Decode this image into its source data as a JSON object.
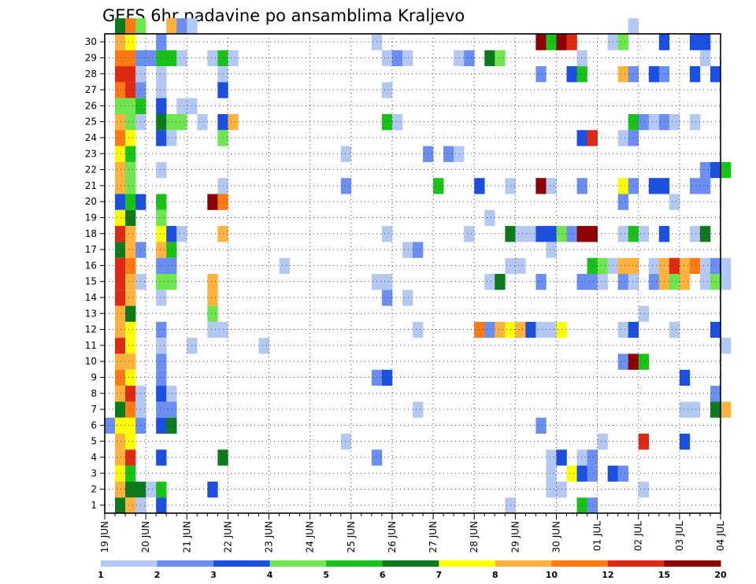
{
  "chart_data": {
    "type": "heatmap",
    "title": "GEFS 6hr padavine po ansamblima Kraljevo",
    "xlabel": "",
    "ylabel": "",
    "x_tick_labels": [
      "19 JUN",
      "20 JUN",
      "21 JUN",
      "22 JUN",
      "23 JUN",
      "24 JUN",
      "25 JUN",
      "26 JUN",
      "27 JUN",
      "28 JUN",
      "29 JUN",
      "30 JUN",
      "01 JUL",
      "02 JUL",
      "03 JUL",
      "04 JUL"
    ],
    "y_tick_labels": [
      "1",
      "2",
      "3",
      "4",
      "5",
      "6",
      "7",
      "8",
      "9",
      "10",
      "11",
      "12",
      "13",
      "14",
      "15",
      "16",
      "17",
      "18",
      "19",
      "20",
      "21",
      "22",
      "23",
      "24",
      "25",
      "26",
      "27",
      "28",
      "29",
      "30"
    ],
    "xlim_steps": [
      0,
      60
    ],
    "ylim_members": [
      0,
      30
    ],
    "grid": true,
    "colorbar": {
      "labels": [
        "1",
        "2",
        "3",
        "4",
        "5",
        "6",
        "7",
        "8",
        "10",
        "12",
        "15",
        "20"
      ],
      "colors": [
        "#b4c8f4",
        "#6b8ff0",
        "#1a4fe0",
        "#6fe64f",
        "#19c219",
        "#0e7a1e",
        "#ffff00",
        "#ffb23d",
        "#ff7a12",
        "#dd2a12",
        "#8e0000"
      ]
    },
    "color_classes": {
      "l": "#b4c8f4",
      "m": "#6b8ff0",
      "b": "#1a4fe0",
      "g": "#6fe64f",
      "G": "#19c219",
      "D": "#0e7a1e",
      "y": "#ffff00",
      "o": "#ffb23d",
      "O": "#ff7a12",
      "r": "#dd2a12",
      "R": "#8e0000"
    },
    "cells": [
      [
        1,
        30,
        "D"
      ],
      [
        2,
        30,
        "O"
      ],
      [
        3,
        30,
        "g"
      ],
      [
        6,
        30,
        "o"
      ],
      [
        7,
        30,
        "m"
      ],
      [
        8,
        30,
        "l"
      ],
      [
        51,
        30,
        "l"
      ],
      [
        1,
        29,
        "o"
      ],
      [
        2,
        29,
        "y"
      ],
      [
        5,
        29,
        "m"
      ],
      [
        26,
        29,
        "l"
      ],
      [
        42,
        29,
        "R"
      ],
      [
        43,
        29,
        "G"
      ],
      [
        44,
        29,
        "R"
      ],
      [
        45,
        29,
        "r"
      ],
      [
        49,
        29,
        "l"
      ],
      [
        50,
        29,
        "g"
      ],
      [
        54,
        29,
        "b"
      ],
      [
        57,
        29,
        "b"
      ],
      [
        58,
        29,
        "b"
      ],
      [
        1,
        28,
        "O"
      ],
      [
        2,
        28,
        "O"
      ],
      [
        3,
        28,
        "m"
      ],
      [
        4,
        28,
        "m"
      ],
      [
        5,
        28,
        "G"
      ],
      [
        6,
        28,
        "G"
      ],
      [
        7,
        28,
        "l"
      ],
      [
        10,
        28,
        "l"
      ],
      [
        11,
        28,
        "G"
      ],
      [
        12,
        28,
        "l"
      ],
      [
        27,
        28,
        "l"
      ],
      [
        28,
        28,
        "m"
      ],
      [
        29,
        28,
        "l"
      ],
      [
        34,
        28,
        "l"
      ],
      [
        35,
        28,
        "m"
      ],
      [
        37,
        28,
        "D"
      ],
      [
        38,
        28,
        "g"
      ],
      [
        46,
        28,
        "l"
      ],
      [
        58,
        28,
        "l"
      ],
      [
        1,
        27,
        "r"
      ],
      [
        2,
        27,
        "r"
      ],
      [
        3,
        27,
        "l"
      ],
      [
        5,
        27,
        "l"
      ],
      [
        11,
        27,
        "l"
      ],
      [
        42,
        27,
        "m"
      ],
      [
        45,
        27,
        "b"
      ],
      [
        46,
        27,
        "G"
      ],
      [
        50,
        27,
        "o"
      ],
      [
        51,
        27,
        "m"
      ],
      [
        53,
        27,
        "b"
      ],
      [
        54,
        27,
        "m"
      ],
      [
        57,
        27,
        "b"
      ],
      [
        59,
        27,
        "b"
      ],
      [
        1,
        26,
        "O"
      ],
      [
        2,
        26,
        "r"
      ],
      [
        3,
        26,
        "m"
      ],
      [
        5,
        26,
        "l"
      ],
      [
        11,
        26,
        "b"
      ],
      [
        27,
        26,
        "l"
      ],
      [
        1,
        25,
        "g"
      ],
      [
        2,
        25,
        "g"
      ],
      [
        3,
        25,
        "G"
      ],
      [
        5,
        25,
        "b"
      ],
      [
        7,
        25,
        "l"
      ],
      [
        8,
        25,
        "l"
      ],
      [
        1,
        24,
        "o"
      ],
      [
        2,
        24,
        "g"
      ],
      [
        3,
        24,
        "l"
      ],
      [
        5,
        24,
        "D"
      ],
      [
        6,
        24,
        "g"
      ],
      [
        7,
        24,
        "g"
      ],
      [
        9,
        24,
        "l"
      ],
      [
        11,
        24,
        "b"
      ],
      [
        12,
        24,
        "o"
      ],
      [
        27,
        24,
        "G"
      ],
      [
        28,
        24,
        "l"
      ],
      [
        51,
        24,
        "G"
      ],
      [
        52,
        24,
        "m"
      ],
      [
        53,
        24,
        "l"
      ],
      [
        54,
        24,
        "m"
      ],
      [
        55,
        24,
        "l"
      ],
      [
        57,
        24,
        "l"
      ],
      [
        1,
        23,
        "O"
      ],
      [
        2,
        23,
        "y"
      ],
      [
        5,
        23,
        "b"
      ],
      [
        6,
        23,
        "l"
      ],
      [
        11,
        23,
        "g"
      ],
      [
        46,
        23,
        "b"
      ],
      [
        47,
        23,
        "r"
      ],
      [
        50,
        23,
        "l"
      ],
      [
        51,
        23,
        "m"
      ],
      [
        1,
        22,
        "y"
      ],
      [
        2,
        22,
        "G"
      ],
      [
        23,
        22,
        "l"
      ],
      [
        31,
        22,
        "m"
      ],
      [
        33,
        22,
        "m"
      ],
      [
        34,
        22,
        "l"
      ],
      [
        1,
        21,
        "o"
      ],
      [
        2,
        21,
        "g"
      ],
      [
        5,
        21,
        "l"
      ],
      [
        58,
        21,
        "m"
      ],
      [
        59,
        21,
        "b"
      ],
      [
        60,
        21,
        "G"
      ],
      [
        1,
        20,
        "o"
      ],
      [
        2,
        20,
        "g"
      ],
      [
        11,
        20,
        "l"
      ],
      [
        23,
        20,
        "m"
      ],
      [
        32,
        20,
        "G"
      ],
      [
        36,
        20,
        "b"
      ],
      [
        39,
        20,
        "l"
      ],
      [
        42,
        20,
        "R"
      ],
      [
        43,
        20,
        "l"
      ],
      [
        46,
        20,
        "m"
      ],
      [
        50,
        20,
        "y"
      ],
      [
        51,
        20,
        "m"
      ],
      [
        53,
        20,
        "b"
      ],
      [
        54,
        20,
        "b"
      ],
      [
        57,
        20,
        "m"
      ],
      [
        58,
        20,
        "m"
      ],
      [
        1,
        19,
        "b"
      ],
      [
        2,
        19,
        "G"
      ],
      [
        3,
        19,
        "b"
      ],
      [
        5,
        19,
        "G"
      ],
      [
        10,
        19,
        "R"
      ],
      [
        11,
        19,
        "O"
      ],
      [
        55,
        19,
        "l"
      ],
      [
        50,
        19,
        "m"
      ],
      [
        1,
        18,
        "y"
      ],
      [
        2,
        18,
        "D"
      ],
      [
        5,
        18,
        "g"
      ],
      [
        37,
        18,
        "l"
      ],
      [
        1,
        17,
        "r"
      ],
      [
        2,
        17,
        "o"
      ],
      [
        5,
        17,
        "y"
      ],
      [
        6,
        17,
        "b"
      ],
      [
        7,
        17,
        "l"
      ],
      [
        11,
        17,
        "o"
      ],
      [
        27,
        17,
        "l"
      ],
      [
        35,
        17,
        "l"
      ],
      [
        39,
        17,
        "D"
      ],
      [
        40,
        17,
        "l"
      ],
      [
        41,
        17,
        "l"
      ],
      [
        42,
        17,
        "b"
      ],
      [
        43,
        17,
        "b"
      ],
      [
        44,
        17,
        "g"
      ],
      [
        45,
        17,
        "m"
      ],
      [
        46,
        17,
        "R"
      ],
      [
        47,
        17,
        "R"
      ],
      [
        50,
        17,
        "l"
      ],
      [
        51,
        17,
        "G"
      ],
      [
        52,
        17,
        "l"
      ],
      [
        54,
        17,
        "b"
      ],
      [
        57,
        17,
        "l"
      ],
      [
        58,
        17,
        "D"
      ],
      [
        1,
        16,
        "D"
      ],
      [
        2,
        16,
        "o"
      ],
      [
        3,
        16,
        "m"
      ],
      [
        5,
        16,
        "o"
      ],
      [
        6,
        16,
        "G"
      ],
      [
        29,
        16,
        "l"
      ],
      [
        30,
        16,
        "m"
      ],
      [
        43,
        16,
        "l"
      ],
      [
        1,
        15,
        "r"
      ],
      [
        2,
        15,
        "O"
      ],
      [
        5,
        15,
        "m"
      ],
      [
        6,
        15,
        "m"
      ],
      [
        17,
        15,
        "l"
      ],
      [
        39,
        15,
        "l"
      ],
      [
        40,
        15,
        "l"
      ],
      [
        47,
        15,
        "G"
      ],
      [
        48,
        15,
        "g"
      ],
      [
        49,
        15,
        "l"
      ],
      [
        50,
        15,
        "o"
      ],
      [
        51,
        15,
        "o"
      ],
      [
        53,
        15,
        "l"
      ],
      [
        54,
        15,
        "o"
      ],
      [
        55,
        15,
        "r"
      ],
      [
        56,
        15,
        "o"
      ],
      [
        57,
        15,
        "O"
      ],
      [
        58,
        15,
        "l"
      ],
      [
        59,
        15,
        "m"
      ],
      [
        60,
        15,
        "l"
      ],
      [
        1,
        14,
        "r"
      ],
      [
        2,
        14,
        "o"
      ],
      [
        3,
        14,
        "l"
      ],
      [
        5,
        14,
        "g"
      ],
      [
        6,
        14,
        "g"
      ],
      [
        10,
        14,
        "o"
      ],
      [
        26,
        14,
        "l"
      ],
      [
        27,
        14,
        "l"
      ],
      [
        37,
        14,
        "l"
      ],
      [
        38,
        14,
        "D"
      ],
      [
        42,
        14,
        "m"
      ],
      [
        46,
        14,
        "m"
      ],
      [
        47,
        14,
        "m"
      ],
      [
        48,
        14,
        "l"
      ],
      [
        50,
        14,
        "m"
      ],
      [
        51,
        14,
        "l"
      ],
      [
        53,
        14,
        "m"
      ],
      [
        54,
        14,
        "o"
      ],
      [
        55,
        14,
        "g"
      ],
      [
        56,
        14,
        "o"
      ],
      [
        58,
        14,
        "l"
      ],
      [
        59,
        14,
        "g"
      ],
      [
        60,
        14,
        "l"
      ],
      [
        1,
        13,
        "r"
      ],
      [
        2,
        13,
        "o"
      ],
      [
        5,
        13,
        "l"
      ],
      [
        10,
        13,
        "o"
      ],
      [
        27,
        13,
        "m"
      ],
      [
        29,
        13,
        "l"
      ],
      [
        1,
        12,
        "o"
      ],
      [
        2,
        12,
        "D"
      ],
      [
        10,
        12,
        "g"
      ],
      [
        52,
        12,
        "l"
      ],
      [
        1,
        11,
        "o"
      ],
      [
        2,
        11,
        "y"
      ],
      [
        5,
        11,
        "m"
      ],
      [
        10,
        11,
        "l"
      ],
      [
        11,
        11,
        "l"
      ],
      [
        30,
        11,
        "l"
      ],
      [
        36,
        11,
        "O"
      ],
      [
        37,
        11,
        "m"
      ],
      [
        38,
        11,
        "o"
      ],
      [
        39,
        11,
        "y"
      ],
      [
        40,
        11,
        "o"
      ],
      [
        41,
        11,
        "b"
      ],
      [
        42,
        11,
        "l"
      ],
      [
        43,
        11,
        "l"
      ],
      [
        44,
        11,
        "y"
      ],
      [
        50,
        11,
        "l"
      ],
      [
        51,
        11,
        "b"
      ],
      [
        55,
        11,
        "l"
      ],
      [
        59,
        11,
        "b"
      ],
      [
        1,
        10,
        "r"
      ],
      [
        2,
        10,
        "y"
      ],
      [
        5,
        10,
        "l"
      ],
      [
        8,
        10,
        "l"
      ],
      [
        15,
        10,
        "l"
      ],
      [
        60,
        10,
        "l"
      ],
      [
        1,
        9,
        "o"
      ],
      [
        2,
        9,
        "o"
      ],
      [
        5,
        9,
        "m"
      ],
      [
        50,
        9,
        "m"
      ],
      [
        51,
        9,
        "R"
      ],
      [
        52,
        9,
        "G"
      ],
      [
        1,
        8,
        "O"
      ],
      [
        2,
        8,
        "y"
      ],
      [
        5,
        8,
        "m"
      ],
      [
        26,
        8,
        "m"
      ],
      [
        27,
        8,
        "b"
      ],
      [
        56,
        8,
        "b"
      ],
      [
        1,
        7,
        "o"
      ],
      [
        2,
        7,
        "r"
      ],
      [
        3,
        7,
        "l"
      ],
      [
        5,
        7,
        "b"
      ],
      [
        6,
        7,
        "l"
      ],
      [
        59,
        7,
        "m"
      ],
      [
        1,
        6,
        "D"
      ],
      [
        2,
        6,
        "O"
      ],
      [
        3,
        6,
        "l"
      ],
      [
        5,
        6,
        "m"
      ],
      [
        6,
        6,
        "m"
      ],
      [
        30,
        6,
        "l"
      ],
      [
        56,
        6,
        "l"
      ],
      [
        57,
        6,
        "l"
      ],
      [
        59,
        6,
        "D"
      ],
      [
        60,
        6,
        "o"
      ],
      [
        0,
        5,
        "m"
      ],
      [
        1,
        5,
        "y"
      ],
      [
        2,
        5,
        "y"
      ],
      [
        3,
        5,
        "m"
      ],
      [
        5,
        5,
        "b"
      ],
      [
        6,
        5,
        "D"
      ],
      [
        42,
        5,
        "m"
      ],
      [
        1,
        4,
        "o"
      ],
      [
        2,
        4,
        "y"
      ],
      [
        23,
        4,
        "l"
      ],
      [
        48,
        4,
        "l"
      ],
      [
        52,
        4,
        "r"
      ],
      [
        56,
        4,
        "b"
      ],
      [
        1,
        3,
        "o"
      ],
      [
        2,
        3,
        "r"
      ],
      [
        5,
        3,
        "b"
      ],
      [
        11,
        3,
        "D"
      ],
      [
        26,
        3,
        "m"
      ],
      [
        43,
        3,
        "l"
      ],
      [
        44,
        3,
        "b"
      ],
      [
        46,
        3,
        "l"
      ],
      [
        47,
        3,
        "m"
      ],
      [
        1,
        2,
        "y"
      ],
      [
        2,
        2,
        "G"
      ],
      [
        43,
        2,
        "l"
      ],
      [
        45,
        2,
        "y"
      ],
      [
        46,
        2,
        "b"
      ],
      [
        47,
        2,
        "m"
      ],
      [
        49,
        2,
        "b"
      ],
      [
        50,
        2,
        "m"
      ],
      [
        1,
        1,
        "o"
      ],
      [
        2,
        1,
        "D"
      ],
      [
        3,
        1,
        "D"
      ],
      [
        4,
        1,
        "l"
      ],
      [
        5,
        1,
        "G"
      ],
      [
        10,
        1,
        "b"
      ],
      [
        43,
        1,
        "l"
      ],
      [
        44,
        1,
        "l"
      ],
      [
        52,
        1,
        "l"
      ],
      [
        1,
        0,
        "D"
      ],
      [
        2,
        0,
        "o"
      ],
      [
        3,
        0,
        "l"
      ],
      [
        5,
        0,
        "b"
      ],
      [
        39,
        0,
        "l"
      ],
      [
        46,
        0,
        "G"
      ],
      [
        47,
        0,
        "m"
      ]
    ]
  }
}
